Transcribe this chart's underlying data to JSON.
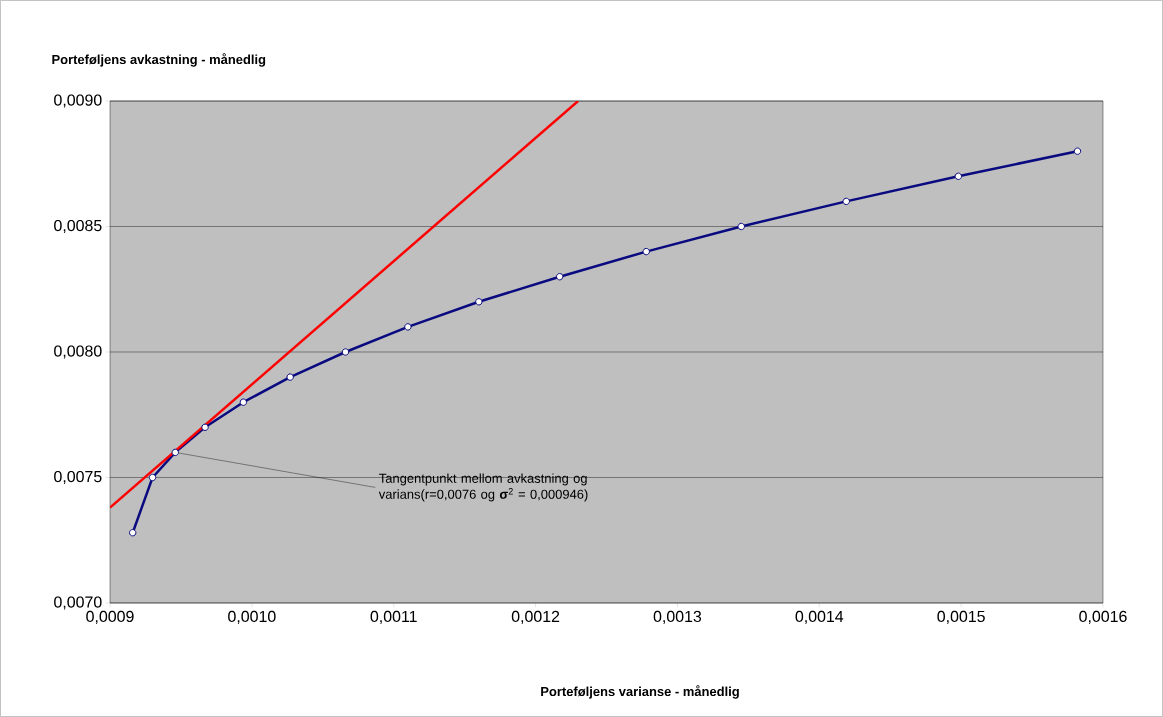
{
  "chart_data": {
    "type": "line",
    "xlabel": "Porteføljens varianse - månedlig",
    "ylabel": "Porteføljens avkastning - månedlig",
    "xlim": [
      0.0009,
      0.0016
    ],
    "ylim": [
      0.007,
      0.009
    ],
    "xticks": [
      {
        "value": 0.0009,
        "label": "0,0009"
      },
      {
        "value": 0.001,
        "label": "0,0010"
      },
      {
        "value": 0.0011,
        "label": "0,0011"
      },
      {
        "value": 0.0012,
        "label": "0,0012"
      },
      {
        "value": 0.0013,
        "label": "0,0013"
      },
      {
        "value": 0.0014,
        "label": "0,0014"
      },
      {
        "value": 0.0015,
        "label": "0,0015"
      },
      {
        "value": 0.0016,
        "label": "0,0016"
      }
    ],
    "yticks": [
      {
        "value": 0.007,
        "label": "0,0070"
      },
      {
        "value": 0.0075,
        "label": "0,0075"
      },
      {
        "value": 0.008,
        "label": "0,0080"
      },
      {
        "value": 0.0085,
        "label": "0,0085"
      },
      {
        "value": 0.009,
        "label": "0,0090"
      }
    ],
    "grid": "y",
    "marker": "circle",
    "series": [
      {
        "color": "#0a0a80",
        "x": [
          0.000916,
          0.00093,
          0.000946,
          0.000967,
          0.000994,
          0.001027,
          0.001066,
          0.00111,
          0.00116,
          0.001217,
          0.001278,
          0.001345,
          0.001419,
          0.001498,
          0.001582
        ],
        "values": [
          0.00728,
          0.0075,
          0.0076,
          0.0077,
          0.0078,
          0.0079,
          0.008,
          0.0081,
          0.0082,
          0.0083,
          0.0084,
          0.0085,
          0.0086,
          0.0087,
          0.0088
        ]
      },
      {
        "color": "#ff0000",
        "marker": "none",
        "x": [
          0.0009,
          0.00123
        ],
        "values": [
          0.00738,
          0.009
        ]
      }
    ],
    "annotations": [
      {
        "text": "Tangentpunkt mellom avkastning og varians(r=0,0076 og **σ**$^{2}$ = 0,000946)",
        "x": 0.000946,
        "y": 0.0076
      }
    ]
  }
}
